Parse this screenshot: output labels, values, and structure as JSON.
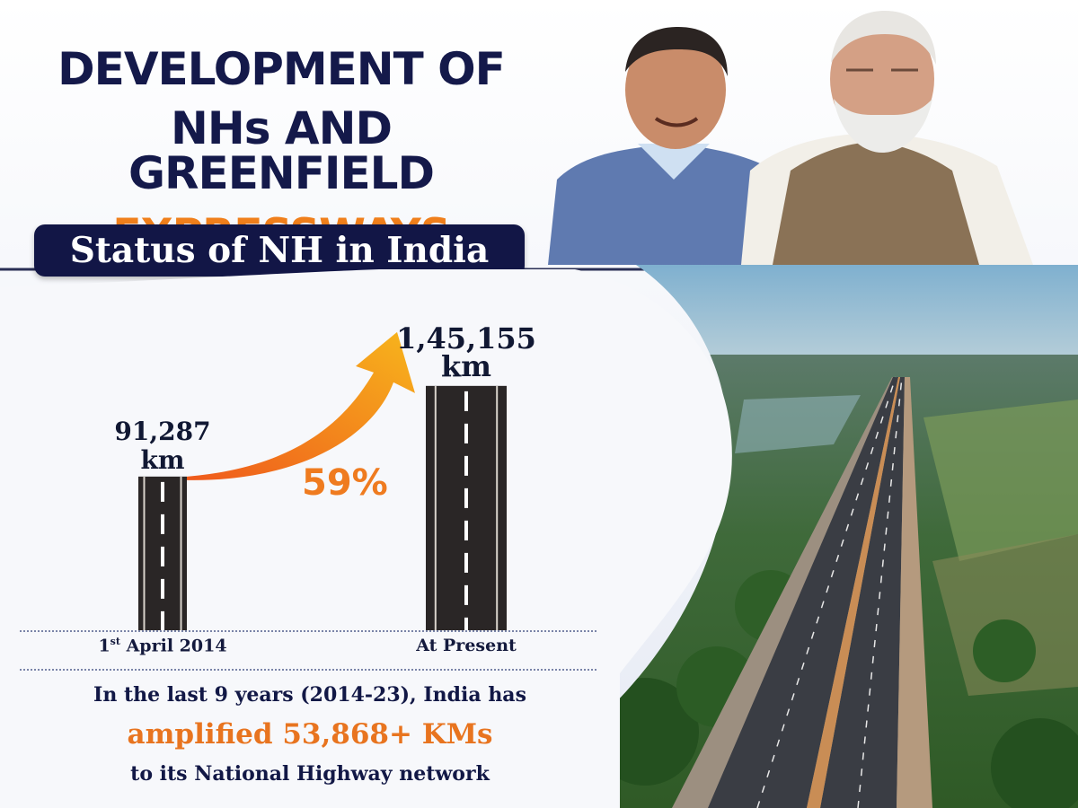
{
  "header": {
    "line1": "DEVELOPMENT OF",
    "line2": "NHs AND GREENFIELD",
    "line3": "EXPRESSWAYS",
    "subtitle": "Status of NH in India"
  },
  "chart_data": {
    "type": "bar",
    "title": "Status of NH in India",
    "categories": [
      "1st April 2014",
      "At Present"
    ],
    "category_superscript": "st",
    "values": [
      91287,
      145155
    ],
    "value_labels": [
      "91,287",
      "1,45,155"
    ],
    "unit": "km",
    "growth_label": "59%",
    "xlabel": "",
    "ylabel": "",
    "ylim": [
      0,
      160000
    ]
  },
  "footer": {
    "line1": "In the last 9 years (2014-23), India has",
    "line2": "amplified 53,868+ KMs",
    "line3": "to its National Highway network"
  },
  "colors": {
    "navy": "#14194a",
    "orange": "#f07f1b",
    "road": "#2a2626",
    "lane": "#ffffff"
  },
  "icons": {
    "growth_arrow": "trend-up-arrow-icon"
  }
}
